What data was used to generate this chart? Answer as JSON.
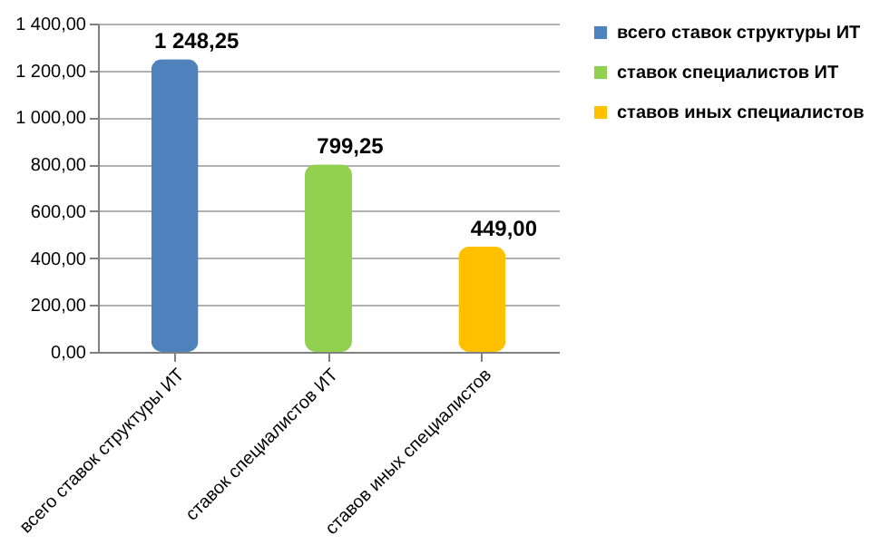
{
  "chart_data": {
    "type": "bar",
    "categories": [
      "всего ставок  структуры ИТ",
      "ставок специалистов ИТ",
      "ставов иных специалистов"
    ],
    "series": [
      {
        "name": "всего ставок структуры ИТ",
        "color": "#4f81bd",
        "values": [
          1248.25,
          null,
          null
        ],
        "value_labels": [
          "1 248,25",
          null,
          null
        ]
      },
      {
        "name": "ставок специалистов ИТ",
        "color": "#92d050",
        "values": [
          null,
          799.25,
          null
        ],
        "value_labels": [
          null,
          "799,25",
          null
        ]
      },
      {
        "name": "ставов иных специалистов",
        "color": "#ffc000",
        "values": [
          null,
          null,
          449.0
        ],
        "value_labels": [
          null,
          null,
          "449,00"
        ]
      }
    ],
    "ylim": [
      0,
      1400
    ],
    "yticks": [
      {
        "value": 0,
        "label": "0,00"
      },
      {
        "value": 200,
        "label": "200,00"
      },
      {
        "value": 400,
        "label": "400,00"
      },
      {
        "value": 600,
        "label": "600,00"
      },
      {
        "value": 800,
        "label": "800,00"
      },
      {
        "value": 1000,
        "label": "1 000,00"
      },
      {
        "value": 1200,
        "label": "1 200,00"
      },
      {
        "value": 1400,
        "label": "1 400,00"
      }
    ],
    "grid": "y",
    "legend": "right"
  }
}
